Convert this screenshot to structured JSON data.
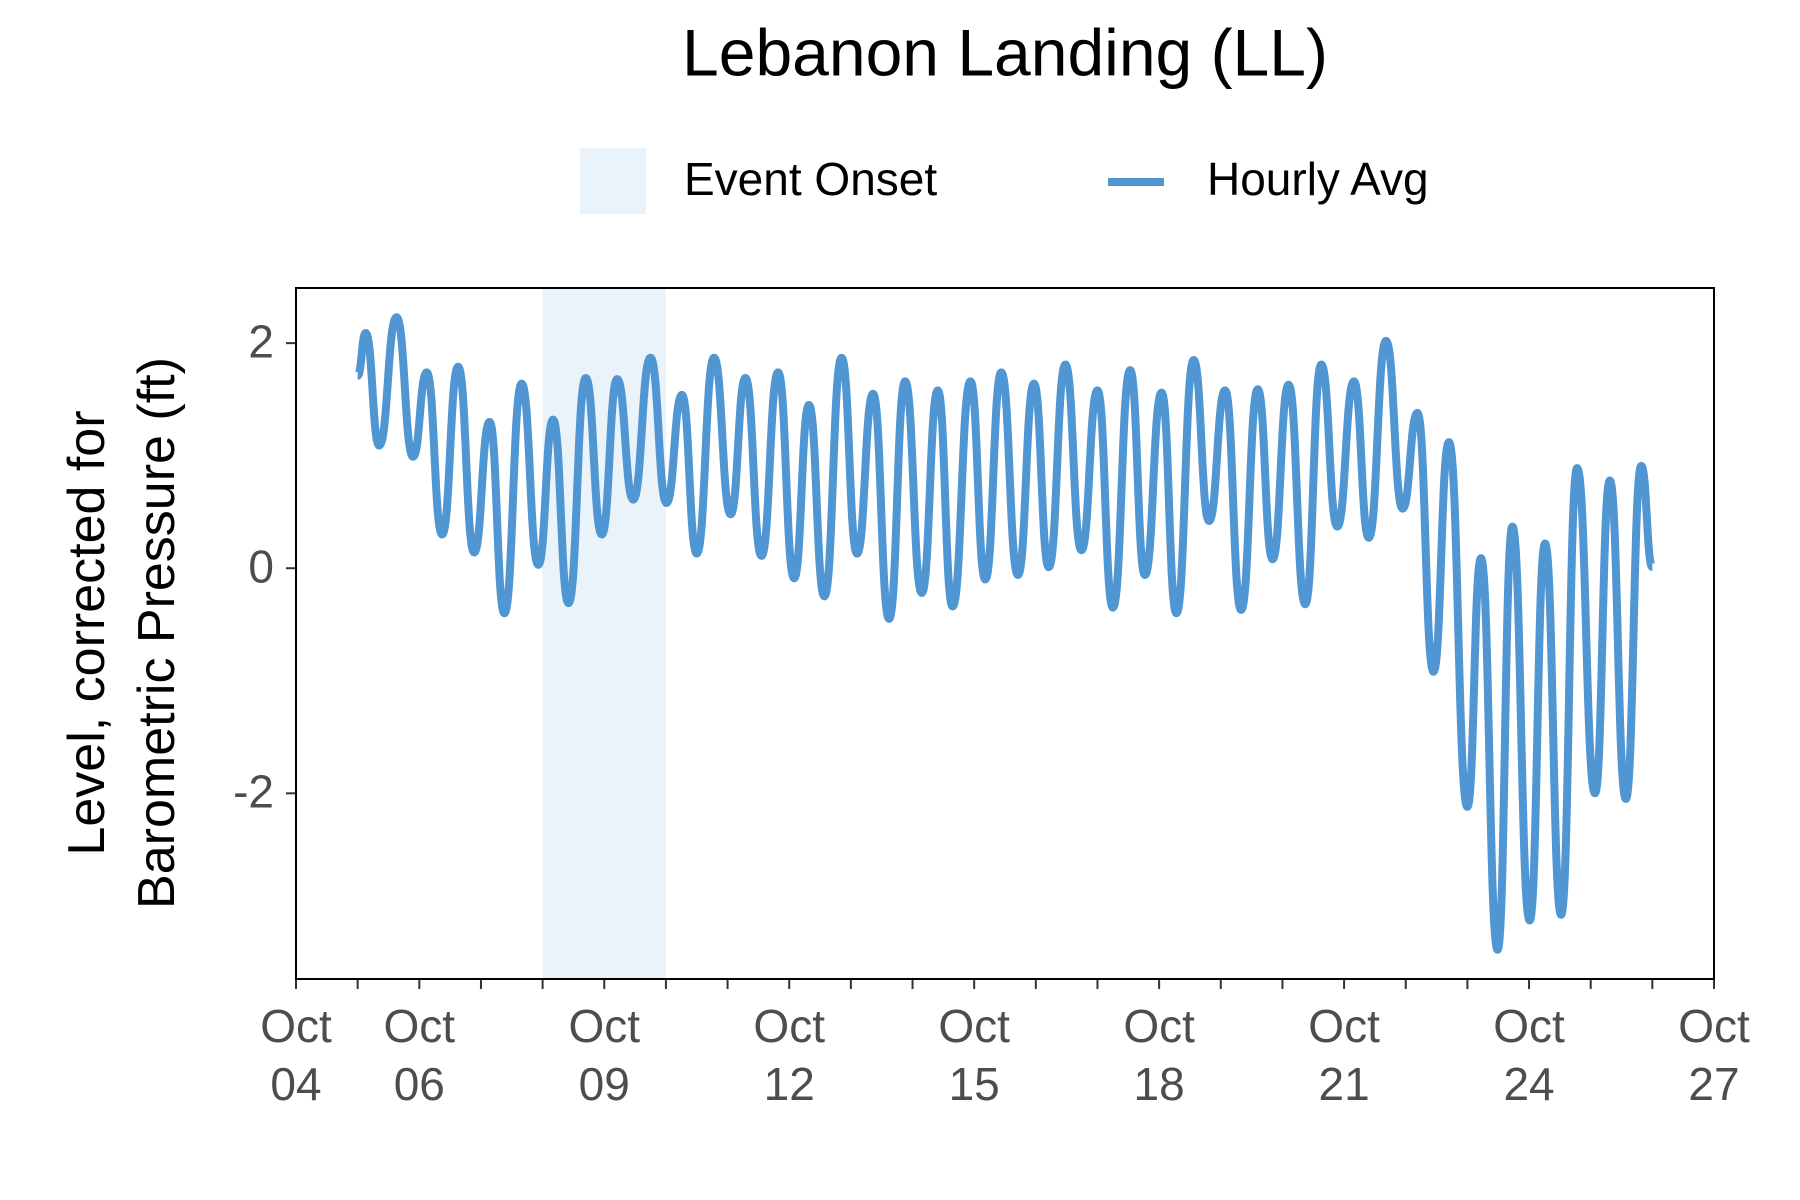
{
  "chart_data": {
    "type": "line",
    "title": "Lebanon Landing (LL)",
    "y_label": "Level, corrected for\nBarometric Pressure (ft)",
    "event": {
      "name": "Event Onset",
      "span": [
        8,
        10
      ],
      "color": "#ebf3fa"
    },
    "xlim": [
      4,
      27
    ],
    "xticks": [
      {
        "value": 4,
        "label": "Oct\n04"
      },
      {
        "value": 6,
        "label": "Oct\n06"
      },
      {
        "value": 9,
        "label": "Oct\n09"
      },
      {
        "value": 12,
        "label": "Oct\n12"
      },
      {
        "value": 15,
        "label": "Oct\n15"
      },
      {
        "value": 18,
        "label": "Oct\n18"
      },
      {
        "value": 21,
        "label": "Oct\n21"
      },
      {
        "value": 24,
        "label": "Oct\n24"
      },
      {
        "value": 27,
        "label": "Oct\n27"
      }
    ],
    "x_minor_ticks": [
      5,
      7,
      8,
      10,
      11,
      13,
      14,
      16,
      17,
      19,
      20,
      22,
      23,
      25,
      26
    ],
    "ylim": [
      -3.65,
      2.49
    ],
    "yticks": [
      -2,
      0,
      2
    ],
    "grid": false,
    "x": [
      5.0,
      5.13,
      5.35,
      5.63,
      5.9,
      6.12,
      6.37,
      6.63,
      6.89,
      7.14,
      7.38,
      7.66,
      7.93,
      8.17,
      8.42,
      8.7,
      8.96,
      9.21,
      9.47,
      9.75,
      10.01,
      10.26,
      10.5,
      10.78,
      11.05,
      11.29,
      11.55,
      11.82,
      12.08,
      12.32,
      12.57,
      12.85,
      13.1,
      13.36,
      13.62,
      13.88,
      14.15,
      14.41,
      14.65,
      14.94,
      15.18,
      15.44,
      15.71,
      15.97,
      16.21,
      16.48,
      16.74,
      17.0,
      17.25,
      17.53,
      17.77,
      18.04,
      18.28,
      18.56,
      18.81,
      19.07,
      19.33,
      19.6,
      19.84,
      20.1,
      20.37,
      20.63,
      20.89,
      21.16,
      21.4,
      21.68,
      21.95,
      22.19,
      22.45,
      22.7,
      23.0,
      23.22,
      23.49,
      23.73,
      24.01,
      24.26,
      24.52,
      24.78,
      25.07,
      25.31,
      25.57,
      25.82,
      26.0
    ],
    "series": [
      {
        "name": "Hourly Avg",
        "color": "#5096d2",
        "values": [
          1.71,
          2.09,
          1.09,
          2.23,
          0.99,
          1.74,
          0.3,
          1.79,
          0.14,
          1.3,
          -0.4,
          1.64,
          0.03,
          1.32,
          -0.31,
          1.69,
          0.3,
          1.68,
          0.61,
          1.87,
          0.58,
          1.54,
          0.13,
          1.87,
          0.48,
          1.69,
          0.11,
          1.74,
          -0.09,
          1.45,
          -0.25,
          1.87,
          0.13,
          1.55,
          -0.45,
          1.66,
          -0.22,
          1.58,
          -0.34,
          1.66,
          -0.1,
          1.74,
          -0.06,
          1.64,
          0.01,
          1.81,
          0.16,
          1.58,
          -0.35,
          1.76,
          -0.06,
          1.56,
          -0.4,
          1.85,
          0.42,
          1.58,
          -0.37,
          1.59,
          0.08,
          1.63,
          -0.32,
          1.81,
          0.37,
          1.66,
          0.27,
          2.02,
          0.53,
          1.38,
          -0.92,
          1.12,
          -2.12,
          0.09,
          -3.39,
          0.37,
          -3.13,
          0.22,
          -3.08,
          0.89,
          -2.0,
          0.78,
          -2.05,
          0.91,
          0.01
        ]
      }
    ]
  }
}
